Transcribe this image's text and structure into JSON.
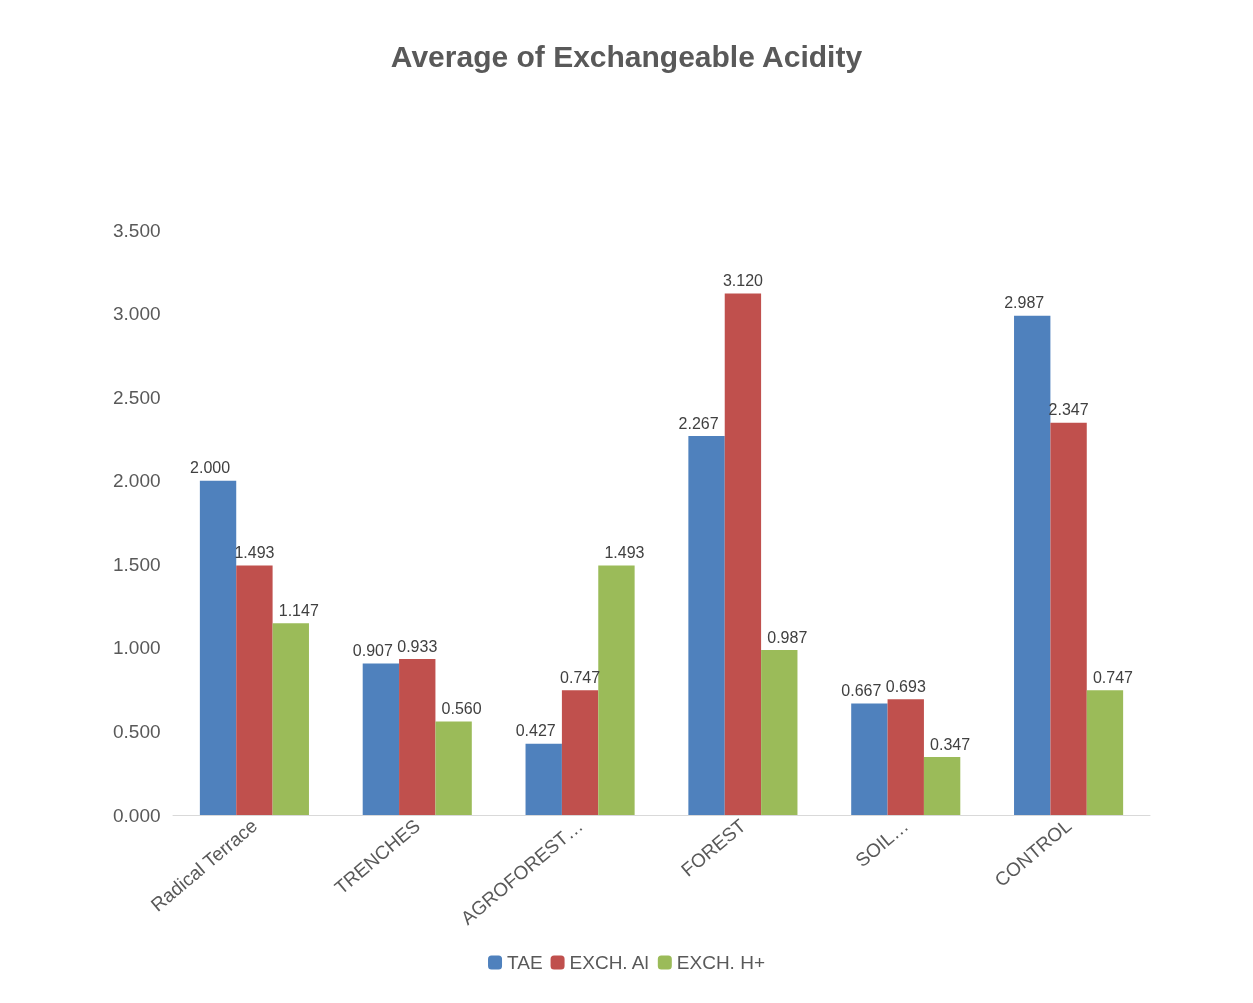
{
  "chart_data": {
    "type": "bar",
    "title": "Average of Exchangeable Acidity",
    "categories": [
      "Radical Terrace",
      "TRENCHES",
      "AGROFOREST…",
      "FOREST",
      "SOIL…",
      "CONTROL"
    ],
    "series": [
      {
        "name": "TAE",
        "color": "#4f81bd",
        "values": [
          2.0,
          0.907,
          0.427,
          2.267,
          0.667,
          2.987
        ],
        "value_labels": [
          "2.000",
          "0.907",
          "0.427",
          "2.267",
          "0.667",
          "2.987"
        ]
      },
      {
        "name": "EXCH. Al",
        "color": "#c0504d",
        "values": [
          1.493,
          0.933,
          0.747,
          3.12,
          0.693,
          2.347
        ],
        "value_labels": [
          "1.493",
          "0.933",
          "0.747",
          "3.120",
          "0.693",
          "2.347"
        ]
      },
      {
        "name": "EXCH. H+",
        "color": "#9bbb59",
        "values": [
          1.147,
          0.56,
          1.493,
          0.987,
          0.347,
          0.747
        ],
        "value_labels": [
          "1.147",
          "0.560",
          "1.493",
          "0.987",
          "0.347",
          "0.747"
        ]
      }
    ],
    "ylim": [
      0,
      3.5
    ],
    "yticks": [
      {
        "value": 0,
        "label": "0.000"
      },
      {
        "value": 0.5,
        "label": "0.500"
      },
      {
        "value": 1,
        "label": "1.000"
      },
      {
        "value": 1.5,
        "label": "1.500"
      },
      {
        "value": 2,
        "label": "2.000"
      },
      {
        "value": 2.5,
        "label": "2.500"
      },
      {
        "value": 3,
        "label": "3.000"
      },
      {
        "value": 3.5,
        "label": "3.500"
      }
    ],
    "grid": false,
    "legend": "bottom"
  }
}
